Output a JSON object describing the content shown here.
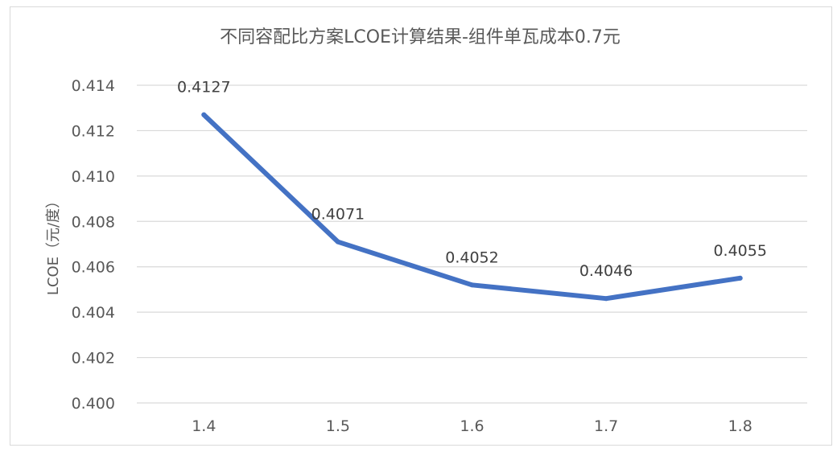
{
  "chart_data": {
    "type": "line",
    "title": "不同容配比方案LCOE计算结果-组件单瓦成本0.7元",
    "xlabel": "",
    "ylabel": "LCOE（元/度）",
    "categories": [
      "1.4",
      "1.5",
      "1.6",
      "1.7",
      "1.8"
    ],
    "series": [
      {
        "values": [
          0.4127,
          0.4071,
          0.4052,
          0.4046,
          0.4055
        ],
        "data_labels": [
          "0.4127",
          "0.4071",
          "0.4052",
          "0.4046",
          "0.4055"
        ]
      }
    ],
    "ylim": [
      0.4,
      0.414
    ],
    "yticks": [
      "0.400",
      "0.402",
      "0.404",
      "0.406",
      "0.408",
      "0.410",
      "0.412",
      "0.414"
    ],
    "grid": true,
    "legend": "none",
    "colors": {
      "line": "#4472C4",
      "grid": "#d9d9d9",
      "text": "#595959"
    }
  }
}
